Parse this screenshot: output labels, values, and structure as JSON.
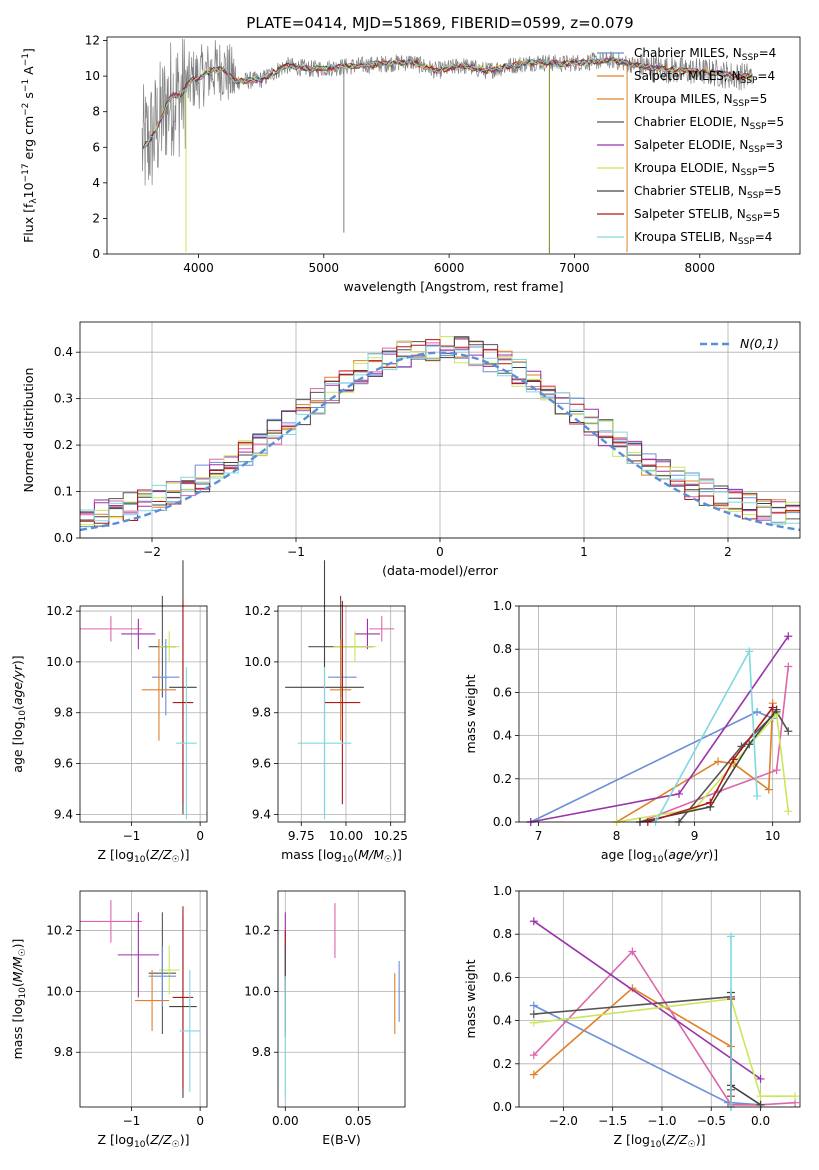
{
  "figure": {
    "title": "PLATE=0414, MJD=51869, FIBERID=0599, z=0.079"
  },
  "palette": {
    "spectrum": "#808080",
    "gauss": "#5a8fd8",
    "models": [
      "#6a8fd8",
      "#e0802a",
      "#dd66aa",
      "#555555",
      "#9933aa",
      "#c8e85a",
      "#444444",
      "#b01818",
      "#80d8e0"
    ]
  },
  "chart_data": [
    {
      "id": "spectrum",
      "type": "line",
      "title": "PLATE=0414, MJD=51869, FIBERID=0599, z=0.079",
      "xlabel": "wavelength [Angstrom, rest frame]",
      "ylabel": "Flux [f_λ10^-17 erg cm^-2 s^-1 A^-1]",
      "xlim": [
        3270,
        8800
      ],
      "ylim": [
        0,
        12.2
      ],
      "xticks": [
        4000,
        5000,
        6000,
        7000,
        8000
      ],
      "yticks": [
        0,
        2,
        4,
        6,
        8,
        10,
        12
      ],
      "grid": false,
      "legend_position": "right",
      "continuum": {
        "x": [
          3550,
          3600,
          3650,
          3700,
          3750,
          3800,
          3850,
          3900,
          3950,
          4000,
          4100,
          4200,
          4300,
          4500,
          4700,
          4900,
          5100,
          5300,
          5500,
          5700,
          5900,
          6100,
          6300,
          6500,
          6700,
          6900,
          7100,
          7300,
          7500,
          7700,
          7900,
          8100,
          8300,
          8400
        ],
        "y": [
          6.0,
          6.3,
          6.8,
          7.6,
          8.5,
          9.0,
          8.8,
          9.4,
          9.8,
          9.9,
          10.3,
          10.4,
          9.7,
          9.8,
          10.6,
          10.4,
          10.5,
          10.6,
          10.7,
          10.8,
          10.3,
          10.6,
          10.3,
          10.6,
          10.8,
          10.7,
          10.8,
          10.9,
          10.6,
          10.4,
          10.3,
          10.2,
          10.0,
          10.0
        ]
      },
      "series": [
        {
          "name": "Chabrier MILES",
          "nssp": "4",
          "color": "#6a8fd8"
        },
        {
          "name": "Salpeter MILES",
          "nssp": "4",
          "color": "#e0802a"
        },
        {
          "name": "Kroupa MILES",
          "nssp": "5",
          "color": "#e0802a"
        },
        {
          "name": "Chabrier ELODIE",
          "nssp": "5",
          "color": "#555555"
        },
        {
          "name": "Salpeter ELODIE",
          "nssp": "3",
          "color": "#9933aa"
        },
        {
          "name": "Kroupa ELODIE",
          "nssp": "5",
          "color": "#c8e85a"
        },
        {
          "name": "Chabrier STELIB",
          "nssp": "5",
          "color": "#444444"
        },
        {
          "name": "Salpeter STELIB",
          "nssp": "5",
          "color": "#b01818"
        },
        {
          "name": "Kroupa STELIB",
          "nssp": "4",
          "color": "#80d8e0"
        }
      ]
    },
    {
      "id": "residuals",
      "type": "step",
      "xlabel": "(data-model)/error",
      "ylabel": "Normed distribution",
      "xlim": [
        -2.5,
        2.5
      ],
      "ylim": [
        0,
        0.465
      ],
      "xticks": [
        -2,
        -1,
        0,
        1,
        2
      ],
      "yticks": [
        0.0,
        0.1,
        0.2,
        0.3,
        0.4
      ],
      "grid": true,
      "legend_position": "top-right",
      "gaussian_label": "N(0,1)",
      "bin_width": 0.1,
      "bins_from": -2.5,
      "bins_count": 50
    },
    {
      "id": "age_vs_Z",
      "type": "errorbar",
      "xlabel": "Z [log10(Z/Z☉)]",
      "ylabel": "age [log10(age/yr)]",
      "xlim": [
        -1.75,
        0.1
      ],
      "ylim": [
        9.37,
        10.22
      ],
      "xticks": [
        -1,
        0
      ],
      "yticks": [
        9.4,
        9.6,
        9.8,
        10.0,
        10.2
      ],
      "points": [
        {
          "x": -1.3,
          "xerr": 0.45,
          "y": 10.13,
          "yerr": 0.05,
          "c": 2
        },
        {
          "x": -0.9,
          "xerr": 0.25,
          "y": 10.11,
          "yerr": 0.06,
          "c": 4
        },
        {
          "x": -0.55,
          "xerr": 0.2,
          "y": 10.06,
          "yerr": 0.2,
          "c": 3
        },
        {
          "x": -0.45,
          "xerr": 0.15,
          "y": 10.06,
          "yerr": 0.06,
          "c": 5
        },
        {
          "x": -0.5,
          "xerr": 0.2,
          "y": 9.94,
          "yerr": 0.15,
          "c": 0
        },
        {
          "x": -0.6,
          "xerr": 0.25,
          "y": 9.89,
          "yerr": 0.2,
          "c": 1
        },
        {
          "x": -0.25,
          "xerr": 0.2,
          "y": 9.9,
          "yerr": 0.5,
          "c": 6
        },
        {
          "x": -0.25,
          "xerr": 0.15,
          "y": 9.84,
          "yerr": 0.4,
          "c": 7
        },
        {
          "x": -0.2,
          "xerr": 0.15,
          "y": 9.68,
          "yerr": 0.3,
          "c": 8
        }
      ]
    },
    {
      "id": "age_vs_mass",
      "type": "errorbar",
      "xlabel": "mass [log10(M/M☉)]",
      "ylabel": "",
      "xlim": [
        9.62,
        10.33
      ],
      "ylim": [
        9.37,
        10.22
      ],
      "xticks": [
        9.75,
        10.0,
        10.25
      ],
      "yticks": [
        9.4,
        9.6,
        9.8,
        10.0,
        10.2
      ],
      "points": [
        {
          "x": 10.2,
          "xerr": 0.07,
          "y": 10.13,
          "yerr": 0.05,
          "c": 2
        },
        {
          "x": 10.12,
          "xerr": 0.07,
          "y": 10.11,
          "yerr": 0.06,
          "c": 4
        },
        {
          "x": 9.97,
          "xerr": 0.18,
          "y": 10.06,
          "yerr": 0.2,
          "c": 3
        },
        {
          "x": 10.05,
          "xerr": 0.12,
          "y": 10.06,
          "yerr": 0.06,
          "c": 5
        },
        {
          "x": 9.98,
          "xerr": 0.08,
          "y": 9.94,
          "yerr": 0.15,
          "c": 0
        },
        {
          "x": 9.97,
          "xerr": 0.06,
          "y": 9.89,
          "yerr": 0.2,
          "c": 1
        },
        {
          "x": 9.88,
          "xerr": 0.22,
          "y": 9.9,
          "yerr": 0.5,
          "c": 6
        },
        {
          "x": 9.98,
          "xerr": 0.1,
          "y": 9.84,
          "yerr": 0.4,
          "c": 7
        },
        {
          "x": 9.88,
          "xerr": 0.15,
          "y": 9.68,
          "yerr": 0.3,
          "c": 8
        }
      ]
    },
    {
      "id": "massweight_vs_age",
      "type": "line",
      "xlabel": "age [log10(age/yr)]",
      "ylabel": "mass weight",
      "xlim": [
        6.75,
        10.35
      ],
      "ylim": [
        0,
        1.0
      ],
      "xticks": [
        7,
        8,
        9,
        10
      ],
      "yticks": [
        0.0,
        0.2,
        0.4,
        0.6,
        0.8,
        1.0
      ],
      "grid": true,
      "series": [
        {
          "c": 0,
          "x": [
            6.9,
            9.8,
            10.0
          ],
          "y": [
            0.0,
            0.51,
            0.48
          ]
        },
        {
          "c": 1,
          "x": [
            8.0,
            9.3,
            9.5,
            9.95,
            10.0
          ],
          "y": [
            0.0,
            0.28,
            0.27,
            0.15,
            0.55
          ]
        },
        {
          "c": 2,
          "x": [
            8.3,
            9.3,
            10.05,
            10.2
          ],
          "y": [
            0.0,
            0.14,
            0.24,
            0.72
          ]
        },
        {
          "c": 3,
          "x": [
            8.8,
            9.6,
            10.05,
            10.2
          ],
          "y": [
            0.0,
            0.35,
            0.51,
            0.42
          ]
        },
        {
          "c": 4,
          "x": [
            6.9,
            8.8,
            10.2
          ],
          "y": [
            0.0,
            0.13,
            0.86
          ]
        },
        {
          "c": 5,
          "x": [
            8.0,
            9.0,
            10.05,
            10.2
          ],
          "y": [
            0.0,
            0.06,
            0.5,
            0.05
          ]
        },
        {
          "c": 6,
          "x": [
            8.3,
            9.2,
            9.7,
            10.05
          ],
          "y": [
            0.0,
            0.07,
            0.36,
            0.52
          ]
        },
        {
          "c": 7,
          "x": [
            8.4,
            9.2,
            9.5,
            10.0
          ],
          "y": [
            0.0,
            0.09,
            0.29,
            0.53
          ]
        },
        {
          "c": 8,
          "x": [
            8.5,
            9.7,
            9.8
          ],
          "y": [
            0.0,
            0.79,
            0.12
          ]
        }
      ]
    },
    {
      "id": "mass_vs_Z",
      "type": "errorbar",
      "xlabel": "Z [log10(Z/Z☉)]",
      "ylabel": "mass [log10(M/M☉)]",
      "xlim": [
        -1.75,
        0.1
      ],
      "ylim": [
        9.62,
        10.33
      ],
      "xticks": [
        -1,
        0
      ],
      "yticks": [
        9.8,
        10.0,
        10.2
      ],
      "points": [
        {
          "x": -1.3,
          "xerr": 0.45,
          "y": 10.23,
          "yerr": 0.07,
          "c": 2
        },
        {
          "x": -0.9,
          "xerr": 0.3,
          "y": 10.12,
          "yerr": 0.14,
          "c": 4
        },
        {
          "x": -0.55,
          "xerr": 0.2,
          "y": 10.06,
          "yerr": 0.2,
          "c": 3
        },
        {
          "x": -0.45,
          "xerr": 0.15,
          "y": 10.07,
          "yerr": 0.08,
          "c": 5
        },
        {
          "x": -0.55,
          "xerr": 0.2,
          "y": 10.05,
          "yerr": 0.1,
          "c": 0
        },
        {
          "x": -0.7,
          "xerr": 0.25,
          "y": 9.97,
          "yerr": 0.1,
          "c": 1
        },
        {
          "x": -0.25,
          "xerr": 0.2,
          "y": 9.95,
          "yerr": 0.3,
          "c": 6
        },
        {
          "x": -0.25,
          "xerr": 0.15,
          "y": 9.98,
          "yerr": 0.3,
          "c": 7
        },
        {
          "x": -0.15,
          "xerr": 0.15,
          "y": 9.87,
          "yerr": 0.2,
          "c": 8
        }
      ]
    },
    {
      "id": "mass_vs_ebv",
      "type": "errorbar",
      "xlabel": "E(B-V)",
      "ylabel": "",
      "xlim": [
        -0.005,
        0.082
      ],
      "ylim": [
        9.62,
        10.33
      ],
      "xticks": [
        0.0,
        0.05
      ],
      "yticks": [
        9.8,
        10.0,
        10.2
      ],
      "points": [
        {
          "x": 0.034,
          "xerr": 0,
          "y": 10.2,
          "yerr": 0.09,
          "c": 2
        },
        {
          "x": 0.0,
          "xerr": 0,
          "y": 10.15,
          "yerr": 0.11,
          "c": 4
        },
        {
          "x": 0.0,
          "xerr": 0,
          "y": 10.1,
          "yerr": 0.1,
          "c": 7
        },
        {
          "x": 0.0,
          "xerr": 0,
          "y": 10.0,
          "yerr": 0.15,
          "c": 3
        },
        {
          "x": 0.0,
          "xerr": 0,
          "y": 9.85,
          "yerr": 0.2,
          "c": 8
        },
        {
          "x": 0.075,
          "xerr": 0,
          "y": 9.96,
          "yerr": 0.1,
          "c": 1
        },
        {
          "x": 0.078,
          "xerr": 0,
          "y": 10.0,
          "yerr": 0.1,
          "c": 0
        }
      ]
    },
    {
      "id": "massweight_vs_Z",
      "type": "line",
      "xlabel": "Z [log10(Z/Z☉)]",
      "ylabel": "mass weight",
      "xlim": [
        -2.45,
        0.4
      ],
      "ylim": [
        0,
        1.0
      ],
      "xticks": [
        -2.0,
        -1.5,
        -1.0,
        -0.5,
        0.0
      ],
      "yticks": [
        0.0,
        0.2,
        0.4,
        0.6,
        0.8,
        1.0
      ],
      "grid": true,
      "series": [
        {
          "c": 0,
          "x": [
            -2.3,
            -0.33,
            -0.3,
            0.0
          ],
          "y": [
            0.47,
            0.02,
            0.02,
            0.01
          ]
        },
        {
          "c": 1,
          "x": [
            -2.3,
            -1.3,
            -0.3,
            -0.3,
            0.0
          ],
          "y": [
            0.15,
            0.55,
            0.28,
            0.01,
            0.01
          ]
        },
        {
          "c": 2,
          "x": [
            -2.3,
            -1.3,
            -0.3,
            0.0,
            0.35
          ],
          "y": [
            0.24,
            0.72,
            0.01,
            0.01,
            0.02
          ]
        },
        {
          "c": 3,
          "x": [
            -2.3,
            -0.3,
            -0.3,
            -0.3
          ],
          "y": [
            0.43,
            0.51,
            0.08,
            0.0
          ]
        },
        {
          "c": 4,
          "x": [
            -2.3,
            0.0
          ],
          "y": [
            0.86,
            0.13
          ]
        },
        {
          "c": 5,
          "x": [
            -2.3,
            -0.3,
            0.0,
            0.35
          ],
          "y": [
            0.39,
            0.5,
            0.05,
            0.05
          ]
        },
        {
          "c": 6,
          "x": [
            -0.3,
            -0.3,
            0.0
          ],
          "y": [
            0.53,
            0.1,
            0.01
          ]
        },
        {
          "c": 7,
          "x": [
            -0.3,
            -0.3
          ],
          "y": [
            0.5,
            0.05
          ]
        },
        {
          "c": 8,
          "x": [
            -0.3,
            -0.3
          ],
          "y": [
            0.79,
            0.0
          ]
        }
      ]
    }
  ]
}
